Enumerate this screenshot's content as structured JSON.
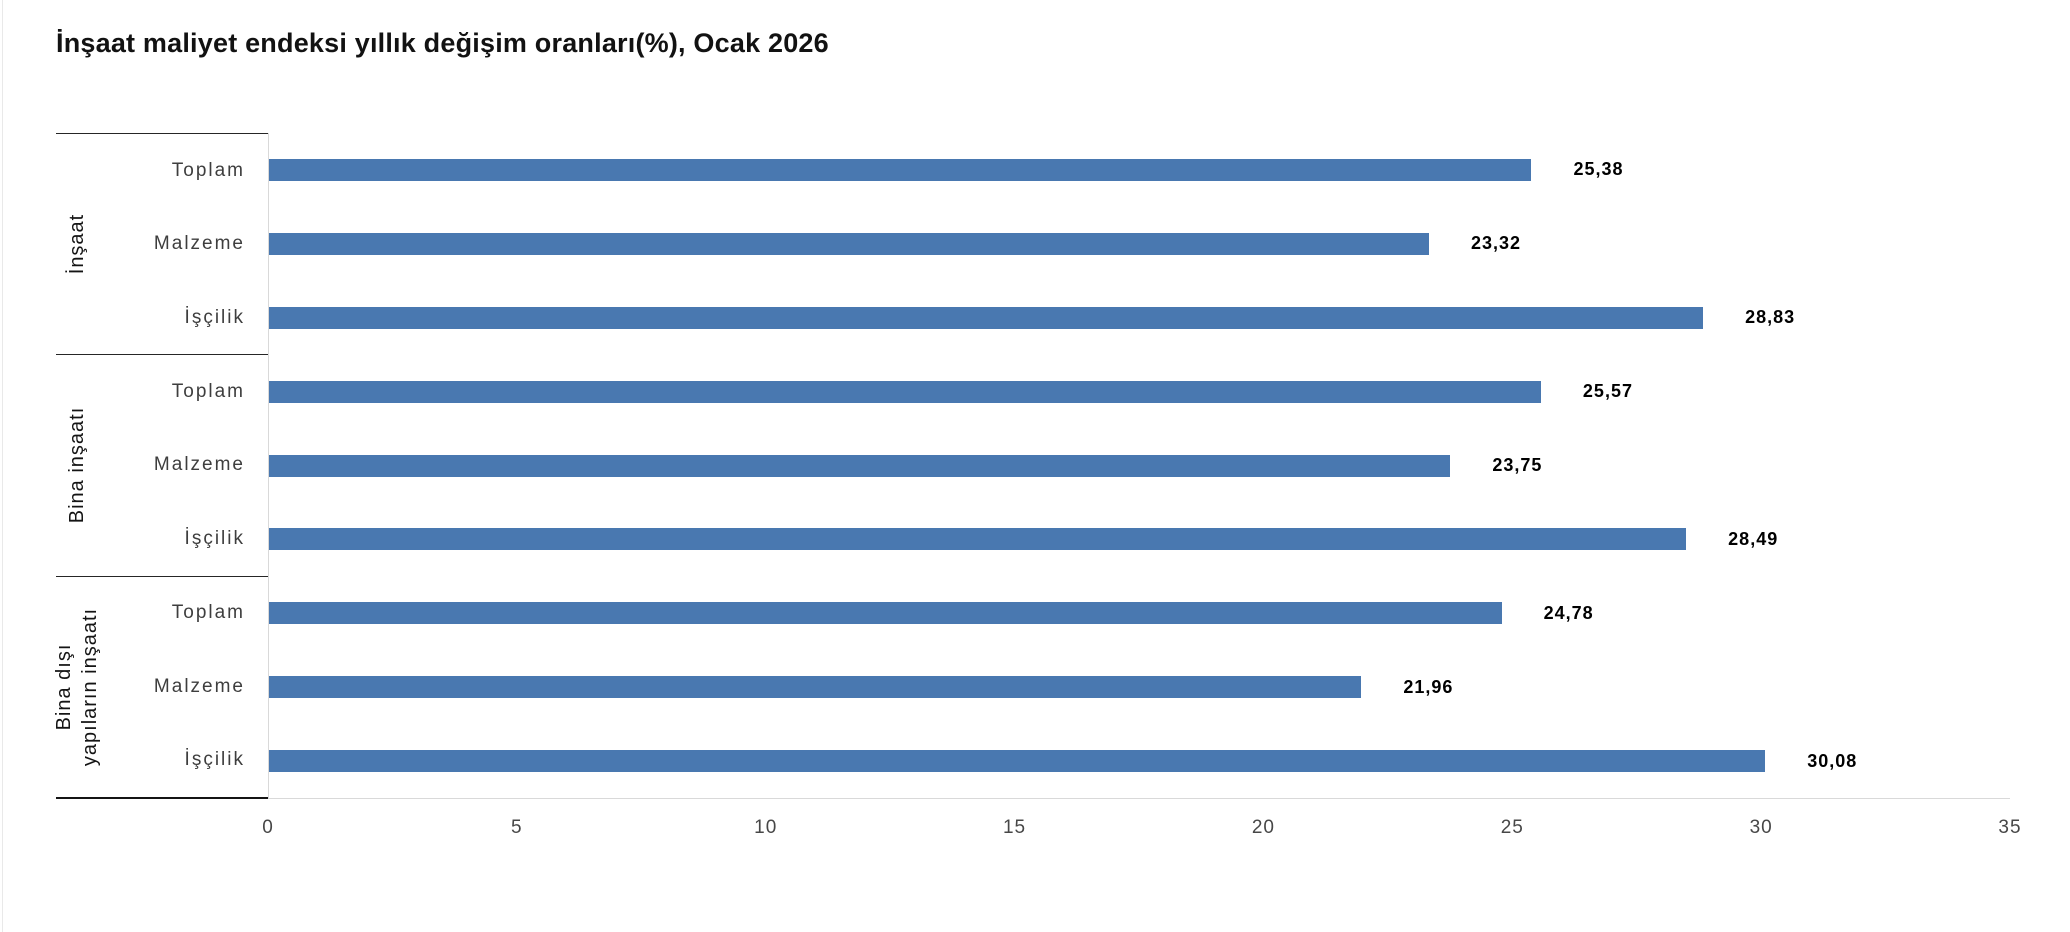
{
  "page": {
    "title": "İnşaat maliyet endeksi yıllık değişim oranları(%), Ocak 2026"
  },
  "chart_data": {
    "type": "bar",
    "orientation": "horizontal",
    "title": "İnşaat maliyet endeksi yıllık değişim oranları(%), Ocak 2026",
    "xlabel": "",
    "ylabel": "",
    "xlim": [
      0,
      35
    ],
    "grid": false,
    "value_labels_shown": true,
    "bar_color": "#4978b0",
    "value_axis": {
      "min": 0,
      "max": 35,
      "ticks": [
        0,
        5,
        10,
        15,
        20,
        25,
        30,
        35
      ]
    },
    "groups": [
      {
        "label_lines": [
          "İnşaat"
        ],
        "rows": [
          {
            "label": "Toplam",
            "value": 25.38,
            "value_label": "25,38"
          },
          {
            "label": "Malzeme",
            "value": 23.32,
            "value_label": "23,32"
          },
          {
            "label": "İşçilik",
            "value": 28.83,
            "value_label": "28,83"
          }
        ]
      },
      {
        "label_lines": [
          "Bina inşaatı"
        ],
        "rows": [
          {
            "label": "Toplam",
            "value": 25.57,
            "value_label": "25,57"
          },
          {
            "label": "Malzeme",
            "value": 23.75,
            "value_label": "23,75"
          },
          {
            "label": "İşçilik",
            "value": 28.49,
            "value_label": "28,49"
          }
        ]
      },
      {
        "label_lines": [
          "Bina dışı",
          "yapıların inşaatı"
        ],
        "rows": [
          {
            "label": "Toplam",
            "value": 24.78,
            "value_label": "24,78"
          },
          {
            "label": "Malzeme",
            "value": 21.96,
            "value_label": "21,96"
          },
          {
            "label": "İşçilik",
            "value": 30.08,
            "value_label": "30,08"
          }
        ]
      }
    ]
  }
}
